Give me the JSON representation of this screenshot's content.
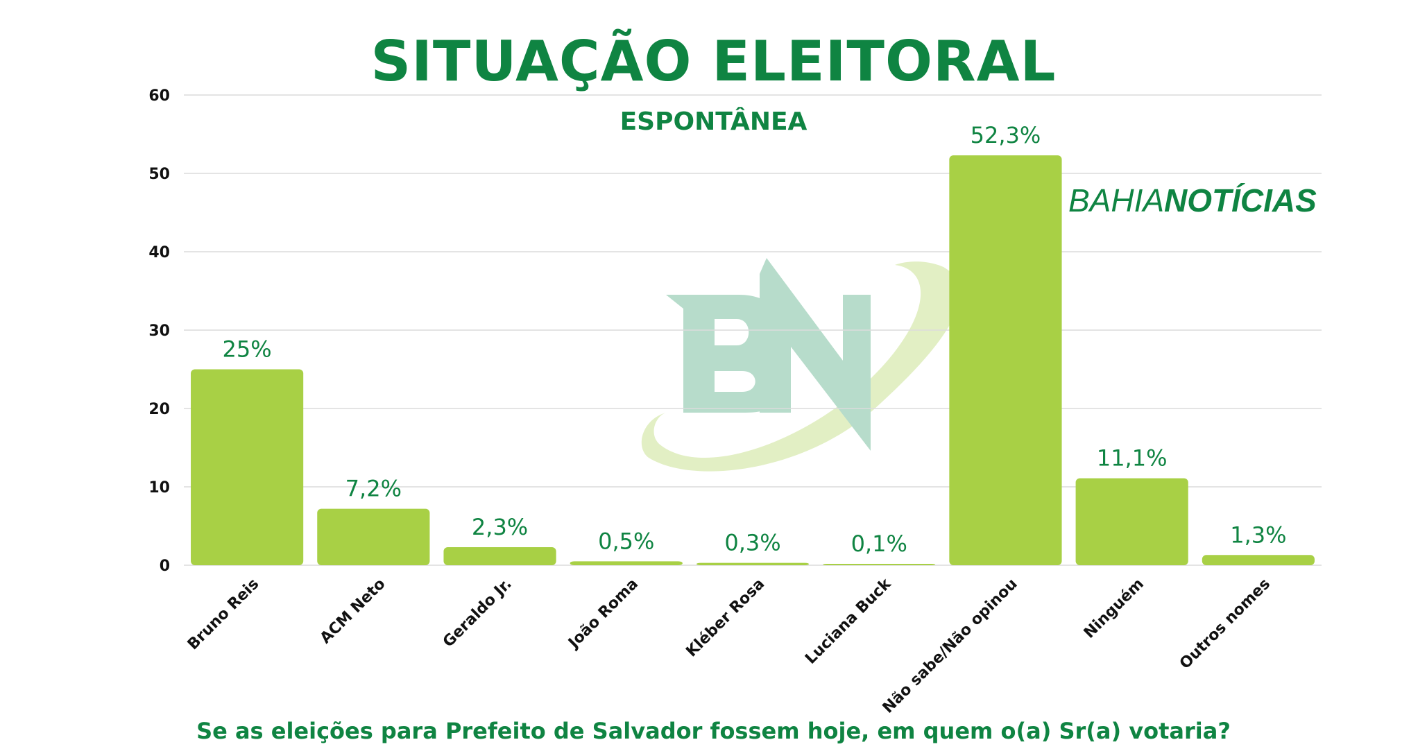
{
  "brand": {
    "part1": "BAHIA",
    "part2": "NOTÍCIAS",
    "watermark": "BN"
  },
  "colors": {
    "bar": "#a8d045",
    "text_green": "#0f8442",
    "grid": "#dcdcdc"
  },
  "chart_data": {
    "type": "bar",
    "title": "SITUAÇÃO ELEITORAL",
    "subtitle": "ESPONTÂNEA",
    "caption": "Se as eleições para Prefeito de Salvador fossem hoje, em quem o(a) Sr(a) votaria?",
    "categories": [
      "Bruno Reis",
      "ACM Neto",
      "Geraldo Jr.",
      "João Roma",
      "Kléber Rosa",
      "Luciana Buck",
      "Não sabe/Não opinou",
      "Ninguém",
      "Outros nomes"
    ],
    "values": [
      25,
      7.2,
      2.3,
      0.5,
      0.3,
      0.1,
      52.3,
      11.1,
      1.3
    ],
    "data_labels": [
      "25%",
      "7,2%",
      "2,3%",
      "0,5%",
      "0,3%",
      "0,1%",
      "52,3%",
      "11,1%",
      "1,3%"
    ],
    "yticks": [
      "0",
      "10",
      "20",
      "30",
      "40",
      "50",
      "60"
    ],
    "ylim": [
      0,
      60
    ],
    "grid": true,
    "legend": "none"
  }
}
